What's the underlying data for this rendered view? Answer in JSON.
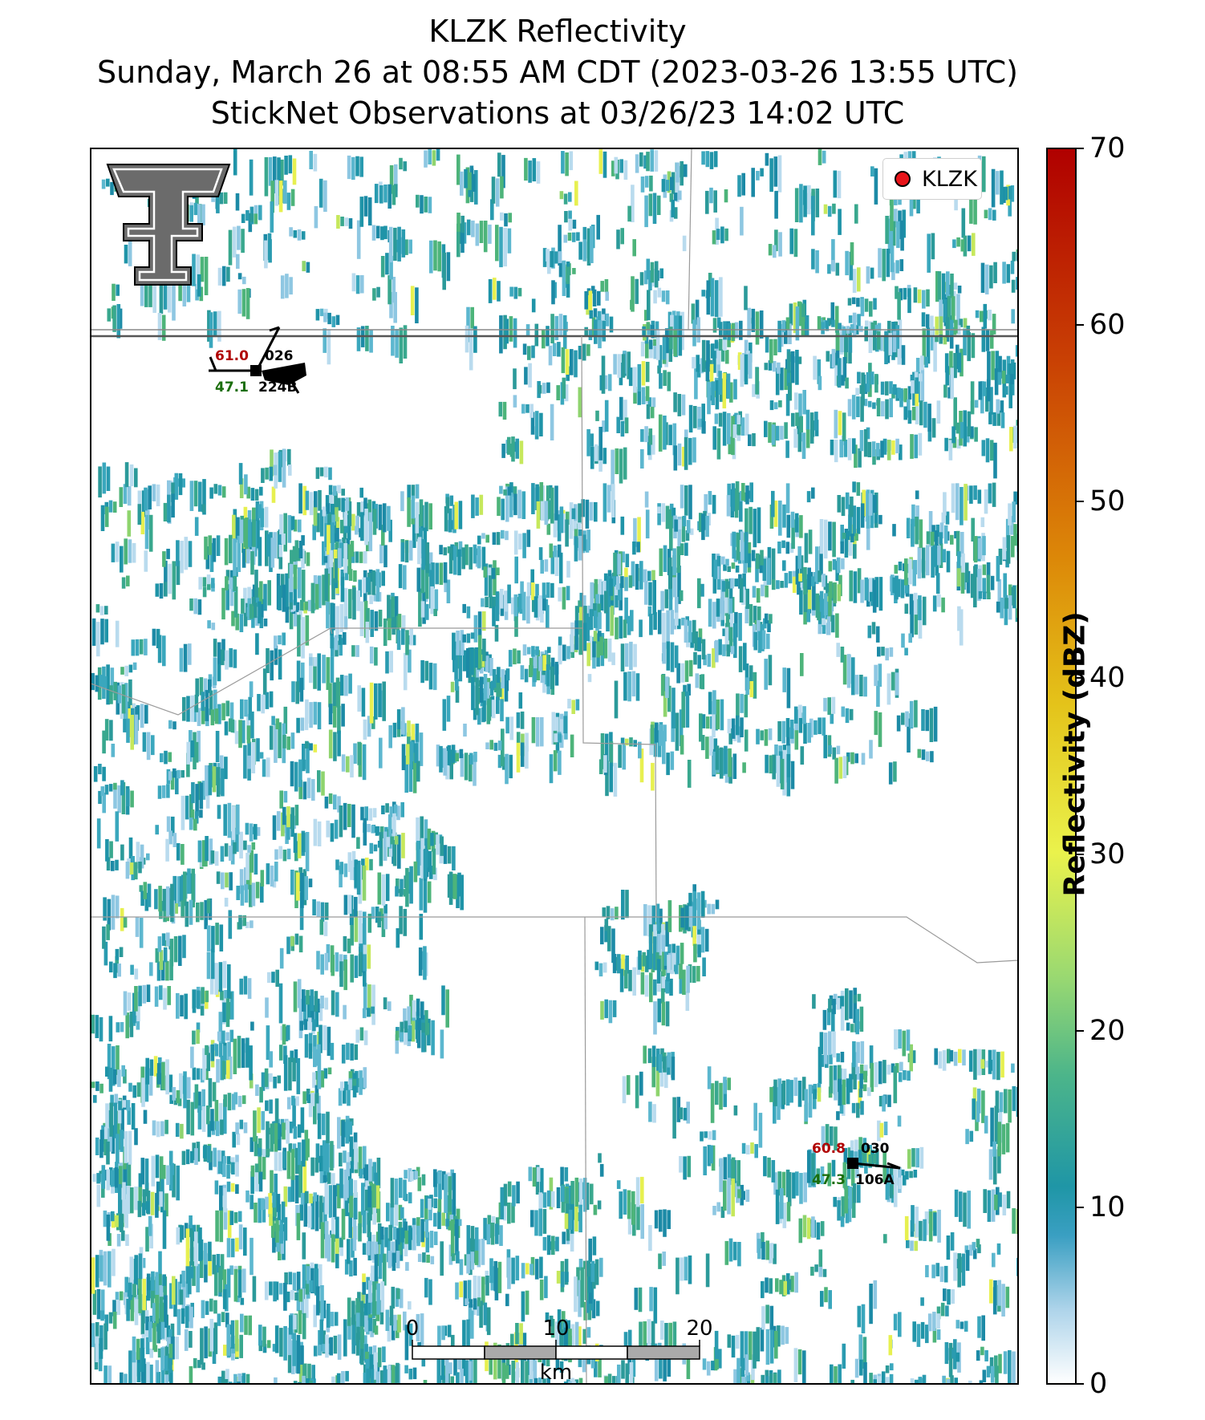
{
  "title": {
    "line1": "KLZK Reflectivity",
    "line2": "Sunday, March 26 at 08:55 AM CDT (2023-03-26 13:55 UTC)",
    "line3": "StickNet Observations at 03/26/23 14:02 UTC"
  },
  "legend": {
    "label": "KLZK",
    "marker_color": "#e8141a"
  },
  "colorbar": {
    "title": "Reflectivity (dBZ)",
    "range": [
      0,
      70
    ],
    "ticks": [
      "0",
      "10",
      "20",
      "30",
      "40",
      "50",
      "60",
      "70"
    ],
    "colors": [
      "#ffffff",
      "#7ec0dd",
      "#1f9aa8",
      "#5cbd7a",
      "#b6e26e",
      "#eaf05a",
      "#e5c420",
      "#dd8a0a",
      "#cc4a05",
      "#b00000"
    ]
  },
  "stations": [
    {
      "id": "station-nw",
      "temperature": "61.0",
      "dewpoint": "47.1",
      "pressure": "026",
      "station_id": "224B"
    },
    {
      "id": "station-se",
      "temperature": "60.8",
      "dewpoint": "47.3",
      "pressure": "030",
      "station_id": "106A"
    }
  ],
  "scale_bar": {
    "labels": [
      "0",
      "10",
      "20"
    ],
    "unit": "km"
  },
  "colors": {
    "temperature": "#b00000",
    "dewpoint": "#1b6e0c",
    "boundary": "#9a9a9a",
    "interstate": "#555555"
  },
  "logo": "texas-tech-double-t-logo"
}
